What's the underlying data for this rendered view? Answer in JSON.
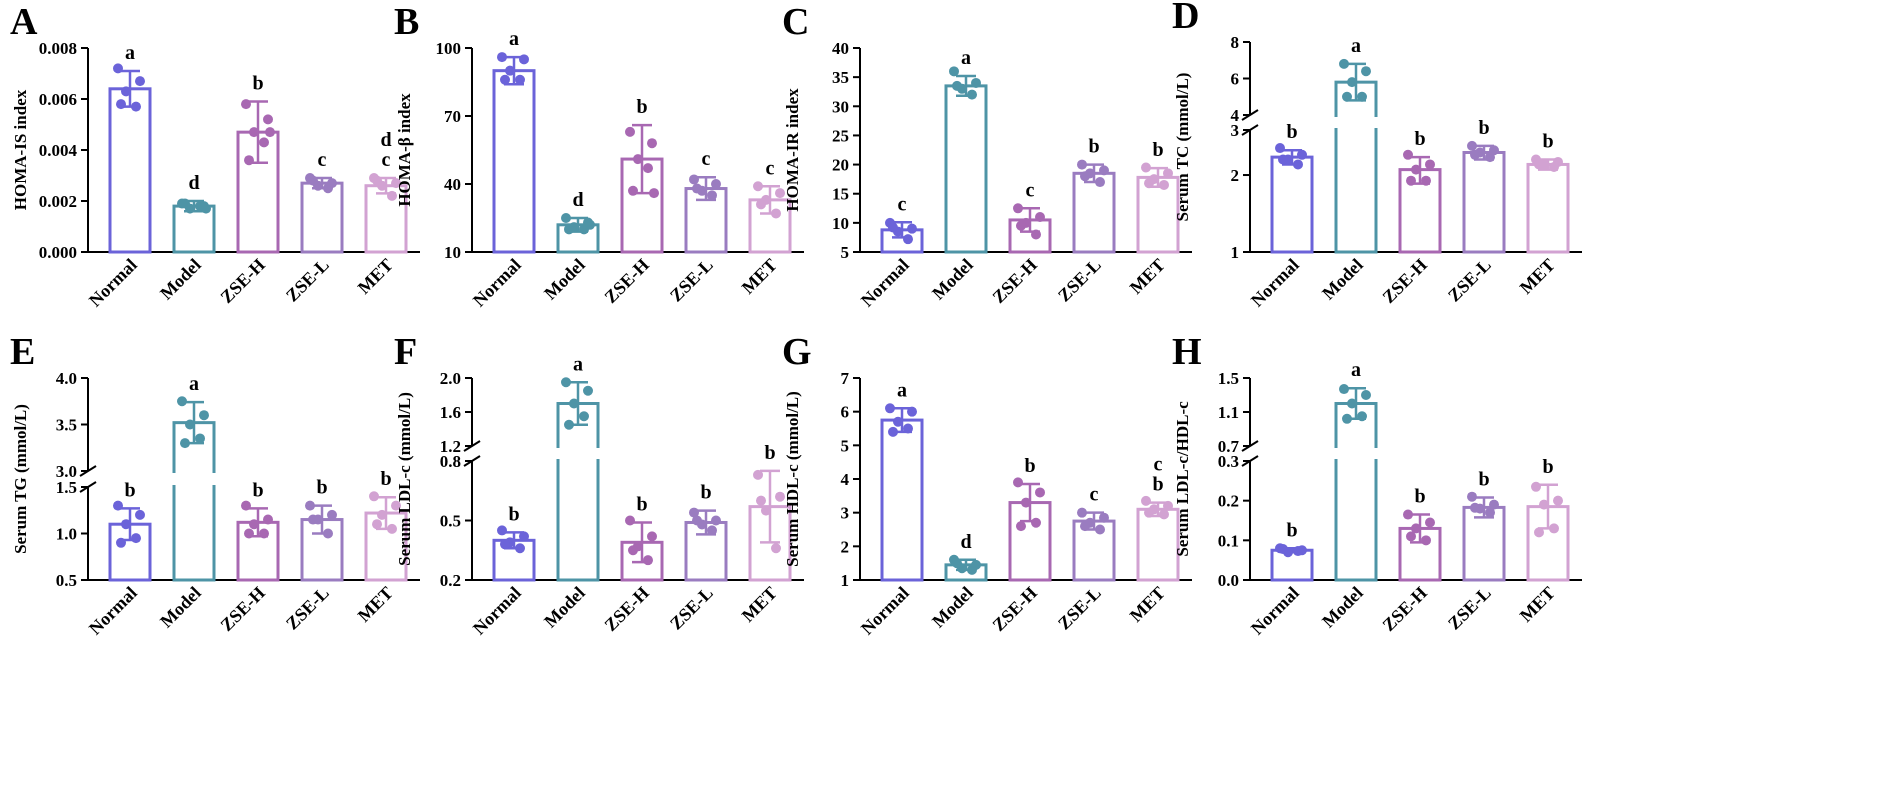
{
  "figure": {
    "colors": {
      "Normal": "#6b63d9",
      "Model": "#4e94a6",
      "ZSE-H": "#a868b2",
      "ZSE-L": "#9a7cc0",
      "MET": "#d2a2d2"
    }
  },
  "chart_data": [
    {
      "panel": "A",
      "type": "bar",
      "ylabel": "HOMA-IS index",
      "categories": [
        "Normal",
        "Model",
        "ZSE-H",
        "ZSE-L",
        "MET"
      ],
      "values": [
        0.0064,
        0.0018,
        0.0047,
        0.0027,
        0.0026
      ],
      "errors": [
        0.0007,
        0.0002,
        0.0012,
        0.0002,
        0.0003
      ],
      "points": [
        [
          0.0072,
          0.0067,
          0.0063,
          0.0057,
          0.0058
        ],
        [
          0.0019,
          0.0018,
          0.0017,
          0.0018,
          0.0019,
          0.0017
        ],
        [
          0.0058,
          0.0052,
          0.0047,
          0.0043,
          0.0036,
          0.0047
        ],
        [
          0.0029,
          0.0027,
          0.0026,
          0.0025,
          0.0028
        ],
        [
          0.0029,
          0.0027,
          0.0026,
          0.0022,
          0.0028
        ]
      ],
      "letters": [
        "a",
        "d",
        "b",
        "c",
        "d\nc"
      ],
      "axes": [
        {
          "min": 0,
          "max": 0.008,
          "ticks": [
            0,
            0.002,
            0.004,
            0.006,
            0.008
          ],
          "labels": [
            "0.000",
            "0.002",
            "0.004",
            "0.006",
            "0.008"
          ]
        }
      ]
    },
    {
      "panel": "B",
      "type": "bar",
      "ylabel": "HOMA-β index",
      "categories": [
        "Normal",
        "Model",
        "ZSE-H",
        "ZSE-L",
        "MET"
      ],
      "values": [
        90,
        22,
        51,
        38,
        33
      ],
      "errors": [
        6,
        3,
        15,
        5,
        6
      ],
      "points": [
        [
          96,
          95,
          90,
          86,
          86
        ],
        [
          25,
          23,
          21,
          20,
          20,
          22
        ],
        [
          63,
          58,
          51,
          47,
          37,
          36
        ],
        [
          42,
          40,
          37,
          35,
          38
        ],
        [
          39,
          36,
          33,
          27,
          31
        ]
      ],
      "letters": [
        "a",
        "d",
        "b",
        "c",
        "c"
      ],
      "axes": [
        {
          "min": 10,
          "max": 100,
          "ticks": [
            10,
            40,
            70,
            100
          ],
          "labels": [
            "10",
            "40",
            "70",
            "100"
          ]
        }
      ]
    },
    {
      "panel": "C",
      "type": "bar",
      "ylabel": "HOMA-IR index",
      "categories": [
        "Normal",
        "Model",
        "ZSE-H",
        "ZSE-L",
        "MET"
      ],
      "values": [
        8.8,
        33.5,
        10.5,
        18.5,
        17.8
      ],
      "errors": [
        1.3,
        1.7,
        2.0,
        1.5,
        1.6
      ],
      "points": [
        [
          10.0,
          9.0,
          8.5,
          7.2,
          9.2
        ],
        [
          36.0,
          34.0,
          33.0,
          32.0,
          33.5
        ],
        [
          12.5,
          11.0,
          10.0,
          8.0,
          9.5
        ],
        [
          20.0,
          19.0,
          18.5,
          17.0,
          18.0
        ],
        [
          19.5,
          18.5,
          17.5,
          16.5,
          16.8
        ]
      ],
      "letters": [
        "c",
        "a",
        "c",
        "b",
        "b"
      ],
      "axes": [
        {
          "min": 5,
          "max": 40,
          "ticks": [
            5,
            10,
            15,
            20,
            25,
            30,
            35,
            40
          ],
          "labels": [
            "5",
            "10",
            "15",
            "20",
            "25",
            "30",
            "35",
            "40"
          ]
        }
      ]
    },
    {
      "panel": "D",
      "type": "bar",
      "ylabel": "Serum TC (mmol/L)",
      "categories": [
        "Normal",
        "Model",
        "ZSE-H",
        "ZSE-L",
        "MET"
      ],
      "values": [
        2.35,
        5.8,
        2.1,
        2.45,
        2.2
      ],
      "errors": [
        0.15,
        1.0,
        0.25,
        0.15,
        0.1
      ],
      "points": [
        [
          2.55,
          2.4,
          2.3,
          2.2,
          2.3
        ],
        [
          6.8,
          6.4,
          5.8,
          5.0,
          5.0
        ],
        [
          2.4,
          2.2,
          2.1,
          1.9,
          1.9
        ],
        [
          2.6,
          2.5,
          2.45,
          2.35,
          2.4
        ],
        [
          2.3,
          2.25,
          2.2,
          2.15,
          2.2
        ]
      ],
      "letters": [
        "b",
        "a",
        "b",
        "b",
        "b"
      ],
      "axes": [
        {
          "min": 1,
          "max": 3,
          "scale": "log",
          "ticks": [
            1,
            2,
            3
          ],
          "labels": [
            "1",
            "2",
            "3"
          ]
        },
        {
          "min": 4,
          "max": 8,
          "ticks": [
            4,
            6,
            8
          ],
          "labels": [
            "4",
            "6",
            "8"
          ]
        }
      ]
    },
    {
      "panel": "E",
      "type": "bar",
      "ylabel": "Serum TG (mmol/L)",
      "categories": [
        "Normal",
        "Model",
        "ZSE-H",
        "ZSE-L",
        "MET"
      ],
      "values": [
        1.1,
        3.52,
        1.12,
        1.15,
        1.22
      ],
      "errors": [
        0.17,
        0.22,
        0.15,
        0.15,
        0.17
      ],
      "points": [
        [
          1.3,
          1.2,
          1.1,
          0.95,
          0.9
        ],
        [
          3.75,
          3.6,
          3.5,
          3.35,
          3.3
        ],
        [
          1.3,
          1.15,
          1.1,
          1.0,
          1.0
        ],
        [
          1.3,
          1.2,
          1.15,
          1.0,
          1.15
        ],
        [
          1.4,
          1.3,
          1.2,
          1.05,
          1.1
        ]
      ],
      "letters": [
        "b",
        "a",
        "b",
        "b",
        "b"
      ],
      "axes": [
        {
          "min": 0.5,
          "max": 1.5,
          "ticks": [
            0.5,
            1.0,
            1.5
          ],
          "labels": [
            "0.5",
            "1.0",
            "1.5"
          ]
        },
        {
          "min": 3.0,
          "max": 4.0,
          "ticks": [
            3.0,
            3.5,
            4.0
          ],
          "labels": [
            "3.0",
            "3.5",
            "4.0"
          ]
        }
      ]
    },
    {
      "panel": "F",
      "type": "bar",
      "ylabel": "Serum LDL-c (mmol/L)",
      "categories": [
        "Normal",
        "Model",
        "ZSE-H",
        "ZSE-L",
        "MET"
      ],
      "values": [
        0.4,
        1.7,
        0.39,
        0.49,
        0.57
      ],
      "errors": [
        0.04,
        0.25,
        0.1,
        0.06,
        0.18
      ],
      "points": [
        [
          0.45,
          0.42,
          0.39,
          0.36,
          0.38
        ],
        [
          1.95,
          1.85,
          1.7,
          1.55,
          1.45
        ],
        [
          0.5,
          0.42,
          0.37,
          0.3,
          0.35
        ],
        [
          0.54,
          0.5,
          0.48,
          0.45,
          0.5
        ],
        [
          0.73,
          0.62,
          0.55,
          0.36,
          0.6
        ]
      ],
      "letters": [
        "b",
        "a",
        "b",
        "b",
        "b"
      ],
      "axes": [
        {
          "min": 0.2,
          "max": 0.8,
          "ticks": [
            0.2,
            0.5,
            0.8
          ],
          "labels": [
            "0.2",
            "0.5",
            "0.8"
          ]
        },
        {
          "min": 1.2,
          "max": 2.0,
          "ticks": [
            1.2,
            1.6,
            2.0
          ],
          "labels": [
            "1.2",
            "1.6",
            "2.0"
          ]
        }
      ]
    },
    {
      "panel": "G",
      "type": "bar",
      "ylabel": "Serum HDL-c (mmol/L)",
      "categories": [
        "Normal",
        "Model",
        "ZSE-H",
        "ZSE-L",
        "MET"
      ],
      "values": [
        5.75,
        1.45,
        3.3,
        2.75,
        3.1
      ],
      "errors": [
        0.35,
        0.15,
        0.55,
        0.25,
        0.2
      ],
      "points": [
        [
          6.1,
          6.0,
          5.7,
          5.5,
          5.4
        ],
        [
          1.6,
          1.45,
          1.35,
          1.3,
          1.5
        ],
        [
          3.9,
          3.6,
          3.3,
          2.7,
          2.6
        ],
        [
          3.0,
          2.85,
          2.7,
          2.5,
          2.6
        ],
        [
          3.35,
          3.2,
          3.1,
          2.95,
          3.0
        ]
      ],
      "letters": [
        "a",
        "d",
        "b",
        "c",
        "c\nb"
      ],
      "axes": [
        {
          "min": 1,
          "max": 7,
          "ticks": [
            1,
            2,
            3,
            4,
            5,
            6,
            7
          ],
          "labels": [
            "1",
            "2",
            "3",
            "4",
            "5",
            "6",
            "7"
          ]
        }
      ]
    },
    {
      "panel": "H",
      "type": "bar",
      "ylabel": "Serum LDL-c/HDL-c",
      "categories": [
        "Normal",
        "Model",
        "ZSE-H",
        "ZSE-L",
        "MET"
      ],
      "values": [
        0.075,
        1.2,
        0.13,
        0.183,
        0.185
      ],
      "errors": [
        0.005,
        0.18,
        0.035,
        0.025,
        0.055
      ],
      "points": [
        [
          0.08,
          0.075,
          0.07,
          0.073,
          0.078
        ],
        [
          1.37,
          1.3,
          1.2,
          1.05,
          1.02
        ],
        [
          0.165,
          0.145,
          0.13,
          0.1,
          0.11
        ],
        [
          0.21,
          0.19,
          0.18,
          0.17,
          0.182
        ],
        [
          0.235,
          0.2,
          0.19,
          0.13,
          0.12
        ]
      ],
      "letters": [
        "b",
        "a",
        "b",
        "b",
        "b"
      ],
      "axes": [
        {
          "min": 0,
          "max": 0.3,
          "ticks": [
            0,
            0.1,
            0.2,
            0.3
          ],
          "labels": [
            "0.0",
            "0.1",
            "0.2",
            "0.3"
          ]
        },
        {
          "min": 0.7,
          "max": 1.5,
          "ticks": [
            0.7,
            1.1,
            1.5
          ],
          "labels": [
            "0.7",
            "1.1",
            "1.5"
          ]
        }
      ]
    }
  ]
}
